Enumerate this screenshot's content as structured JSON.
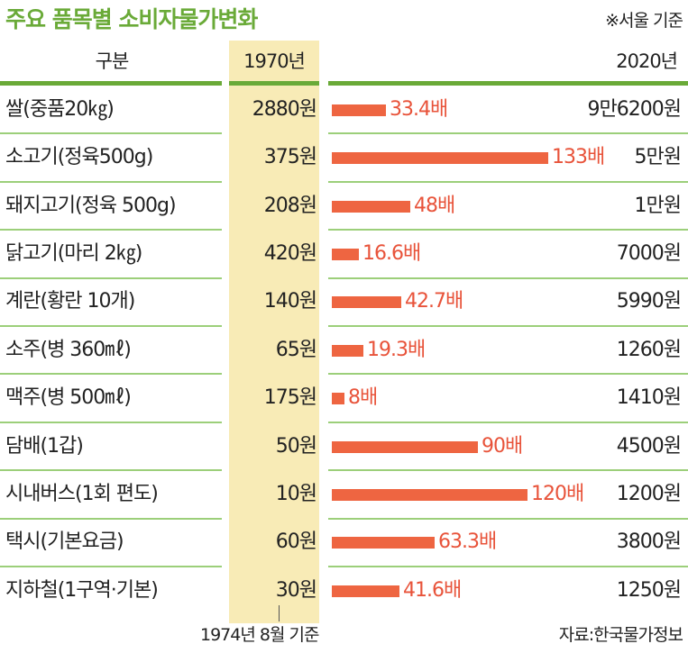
{
  "title": "주요 품목별 소비자물가변화",
  "note": "※서울 기준",
  "headers": {
    "category": "구분",
    "year1": "1970년",
    "year2": "2020년"
  },
  "footnote": "1974년 8월 기준",
  "source": "자료:한국물가정보",
  "colors": {
    "green": "#6aaa38",
    "bar": "#ee6541",
    "ratio_text": "#e8533a",
    "highlight": "#f8ebb6"
  },
  "chart_data": {
    "type": "bar",
    "title": "주요 품목별 소비자물가변화",
    "categories": [
      "쌀(중품20㎏)",
      "소고기(정육500g)",
      "돼지고기(정육 500g)",
      "닭고기(마리 2㎏)",
      "계란(황란 10개)",
      "소주(병 360㎖)",
      "맥주(병 500㎖)",
      "담배(1갑)",
      "시내버스(1회 편도)",
      "택시(기본요금)",
      "지하철(1구역·기본)"
    ],
    "price_1970": [
      "2880원",
      "375원",
      "208원",
      "420원",
      "140원",
      "65원",
      "175원",
      "50원",
      "10원",
      "60원",
      "30원"
    ],
    "price_2020": [
      "9만6200원",
      "5만원",
      "1만원",
      "7000원",
      "5990원",
      "1260원",
      "1410원",
      "4500원",
      "1200원",
      "3800원",
      "1250원"
    ],
    "ratio_labels": [
      "33.4배",
      "133배",
      "48배",
      "16.6배",
      "42.7배",
      "19.3배",
      "8배",
      "90배",
      "120배",
      "63.3배",
      "41.6배"
    ],
    "values": [
      33.4,
      133,
      48,
      16.6,
      42.7,
      19.3,
      8,
      90,
      120,
      63.3,
      41.6
    ]
  }
}
